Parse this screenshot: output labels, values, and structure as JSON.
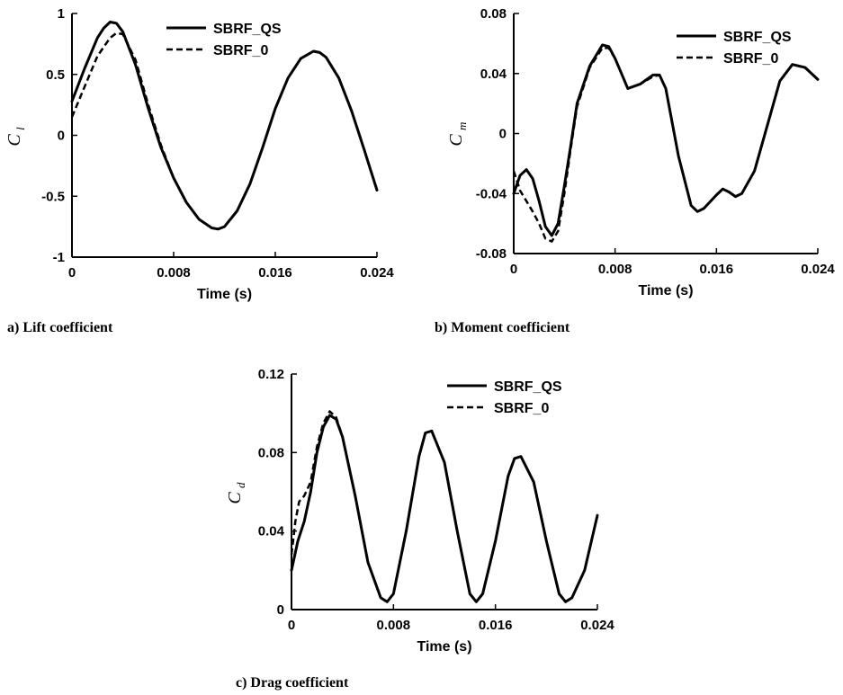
{
  "chart_data": [
    {
      "type": "line",
      "caption": "a) Lift coefficient",
      "xlabel": "Time (s)",
      "ylabel_main": "C",
      "ylabel_sub": "l",
      "xlim": [
        0,
        0.024
      ],
      "ylim": [
        -1,
        1
      ],
      "xticks": [
        "0",
        "0.008",
        "0.016",
        "0.024"
      ],
      "yticks": [
        "1",
        "0.5",
        "0",
        "-0.5",
        "-1"
      ],
      "legend_position": "top-right",
      "series": [
        {
          "name": "SBRF_QS",
          "style": "solid",
          "x": [
            0,
            0.001,
            0.002,
            0.0025,
            0.003,
            0.0035,
            0.004,
            0.005,
            0.006,
            0.007,
            0.008,
            0.009,
            0.01,
            0.011,
            0.0115,
            0.012,
            0.013,
            0.014,
            0.015,
            0.016,
            0.017,
            0.018,
            0.019,
            0.0195,
            0.02,
            0.021,
            0.022,
            0.023,
            0.024
          ],
          "y": [
            0.28,
            0.55,
            0.8,
            0.88,
            0.93,
            0.92,
            0.85,
            0.58,
            0.22,
            -0.1,
            -0.35,
            -0.55,
            -0.69,
            -0.76,
            -0.77,
            -0.75,
            -0.62,
            -0.4,
            -0.1,
            0.22,
            0.47,
            0.63,
            0.69,
            0.68,
            0.64,
            0.47,
            0.2,
            -0.12,
            -0.45
          ]
        },
        {
          "name": "SBRF_0",
          "style": "dashed",
          "x": [
            0,
            0.001,
            0.002,
            0.003,
            0.0035,
            0.004,
            0.005,
            0.006,
            0.007,
            0.008,
            0.009,
            0.01,
            0.011,
            0.0115,
            0.012,
            0.013,
            0.014,
            0.015,
            0.016,
            0.017,
            0.018,
            0.019,
            0.0195,
            0.02,
            0.021,
            0.022,
            0.023,
            0.024
          ],
          "y": [
            0.15,
            0.4,
            0.65,
            0.8,
            0.84,
            0.83,
            0.62,
            0.25,
            -0.08,
            -0.35,
            -0.55,
            -0.69,
            -0.76,
            -0.77,
            -0.75,
            -0.62,
            -0.4,
            -0.1,
            0.22,
            0.47,
            0.63,
            0.69,
            0.68,
            0.64,
            0.47,
            0.2,
            -0.12,
            -0.45
          ]
        }
      ]
    },
    {
      "type": "line",
      "caption": "b) Moment coefficient",
      "xlabel": "Time (s)",
      "ylabel_main": "C",
      "ylabel_sub": "m",
      "xlim": [
        0,
        0.024
      ],
      "ylim": [
        -0.08,
        0.08
      ],
      "xticks": [
        "0",
        "0.008",
        "0.016",
        "0.024"
      ],
      "yticks": [
        "0.08",
        "0.04",
        "0",
        "-0.04",
        "-0.08"
      ],
      "legend_position": "top-right",
      "series": [
        {
          "name": "SBRF_QS",
          "style": "solid",
          "x": [
            0,
            0.0005,
            0.001,
            0.0015,
            0.002,
            0.0025,
            0.003,
            0.0035,
            0.004,
            0.0045,
            0.005,
            0.006,
            0.007,
            0.0075,
            0.008,
            0.009,
            0.01,
            0.011,
            0.0115,
            0.012,
            0.013,
            0.014,
            0.0145,
            0.015,
            0.016,
            0.0165,
            0.017,
            0.0175,
            0.018,
            0.019,
            0.02,
            0.021,
            0.022,
            0.023,
            0.024
          ],
          "y": [
            -0.04,
            -0.028,
            -0.024,
            -0.03,
            -0.045,
            -0.062,
            -0.068,
            -0.06,
            -0.035,
            -0.008,
            0.02,
            0.045,
            0.059,
            0.058,
            0.05,
            0.03,
            0.033,
            0.039,
            0.039,
            0.03,
            -0.015,
            -0.048,
            -0.052,
            -0.05,
            -0.041,
            -0.037,
            -0.039,
            -0.042,
            -0.04,
            -0.025,
            0.005,
            0.035,
            0.046,
            0.044,
            0.036
          ]
        },
        {
          "name": "SBRF_0",
          "style": "dashed",
          "x": [
            0,
            0.0005,
            0.001,
            0.0015,
            0.002,
            0.0025,
            0.003,
            0.0035,
            0.004,
            0.0045,
            0.005,
            0.006,
            0.007,
            0.0075,
            0.008,
            0.009,
            0.01,
            0.011,
            0.0115,
            0.012,
            0.013,
            0.014,
            0.0145,
            0.015,
            0.016,
            0.0165,
            0.017,
            0.0175,
            0.018,
            0.019,
            0.02,
            0.021,
            0.022,
            0.023,
            0.024
          ],
          "y": [
            -0.025,
            -0.038,
            -0.045,
            -0.052,
            -0.06,
            -0.07,
            -0.072,
            -0.065,
            -0.04,
            -0.01,
            0.018,
            0.044,
            0.057,
            0.057,
            0.05,
            0.03,
            0.033,
            0.038,
            0.039,
            0.03,
            -0.015,
            -0.048,
            -0.052,
            -0.05,
            -0.041,
            -0.037,
            -0.039,
            -0.042,
            -0.04,
            -0.025,
            0.005,
            0.035,
            0.046,
            0.044,
            0.036
          ]
        }
      ]
    },
    {
      "type": "line",
      "caption": "c) Drag coefficient",
      "xlabel": "Time (s)",
      "ylabel_main": "C",
      "ylabel_sub": "d",
      "xlim": [
        0,
        0.024
      ],
      "ylim": [
        0,
        0.12
      ],
      "xticks": [
        "0",
        "0.008",
        "0.016",
        "0.024"
      ],
      "yticks": [
        "0.12",
        "0.08",
        "0.04",
        "0"
      ],
      "legend_position": "top-right",
      "series": [
        {
          "name": "SBRF_QS",
          "style": "solid",
          "x": [
            0,
            0.0005,
            0.001,
            0.0015,
            0.002,
            0.0025,
            0.003,
            0.0035,
            0.004,
            0.005,
            0.006,
            0.007,
            0.0075,
            0.008,
            0.009,
            0.01,
            0.0105,
            0.011,
            0.012,
            0.013,
            0.014,
            0.0145,
            0.015,
            0.016,
            0.017,
            0.0175,
            0.018,
            0.019,
            0.02,
            0.021,
            0.0215,
            0.022,
            0.023,
            0.024
          ],
          "y": [
            0.02,
            0.035,
            0.045,
            0.06,
            0.08,
            0.093,
            0.099,
            0.097,
            0.088,
            0.058,
            0.024,
            0.006,
            0.004,
            0.008,
            0.04,
            0.078,
            0.09,
            0.091,
            0.075,
            0.04,
            0.008,
            0.004,
            0.008,
            0.035,
            0.068,
            0.077,
            0.078,
            0.065,
            0.035,
            0.008,
            0.004,
            0.006,
            0.02,
            0.048
          ]
        },
        {
          "name": "SBRF_0",
          "style": "dashed",
          "x": [
            0,
            0.0003,
            0.0006,
            0.001,
            0.0015,
            0.002,
            0.0025,
            0.003,
            0.0035,
            0.004,
            0.005,
            0.006,
            0.007,
            0.0075,
            0.008,
            0.009,
            0.01,
            0.0105,
            0.011,
            0.012,
            0.013,
            0.014,
            0.0145,
            0.015,
            0.016,
            0.017,
            0.0175,
            0.018,
            0.019,
            0.02,
            0.021,
            0.0215,
            0.022,
            0.023,
            0.024
          ],
          "y": [
            0.028,
            0.045,
            0.055,
            0.058,
            0.065,
            0.083,
            0.095,
            0.101,
            0.098,
            0.088,
            0.058,
            0.024,
            0.006,
            0.004,
            0.008,
            0.04,
            0.078,
            0.09,
            0.091,
            0.075,
            0.04,
            0.008,
            0.004,
            0.008,
            0.035,
            0.068,
            0.077,
            0.078,
            0.065,
            0.035,
            0.008,
            0.004,
            0.006,
            0.02,
            0.048
          ]
        }
      ]
    }
  ]
}
